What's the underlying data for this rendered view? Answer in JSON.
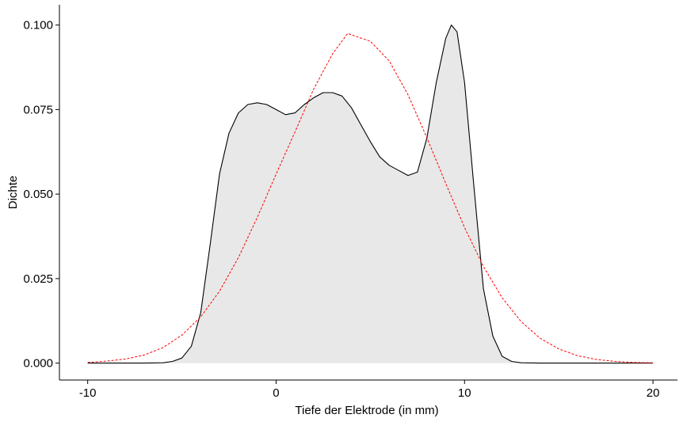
{
  "chart_data": {
    "type": "area",
    "title": "",
    "xlabel": "Tiefe der Elektrode (in mm)",
    "ylabel": "Dichte",
    "xlim": [
      -11.5,
      21.3
    ],
    "ylim": [
      -0.005,
      0.106
    ],
    "x_ticks": [
      -10,
      0,
      10,
      20
    ],
    "x_tick_labels": [
      "-10",
      "0",
      "10",
      "20"
    ],
    "y_ticks": [
      0.0,
      0.025,
      0.05,
      0.075,
      0.1
    ],
    "y_tick_labels": [
      "0.000",
      "0.025",
      "0.050",
      "0.075",
      "0.100"
    ],
    "grid": false,
    "legend": "none",
    "series": [
      {
        "style": "solid-fill",
        "line_color": "#000000",
        "fill_color": "#e8e8e8",
        "x": [
          -10,
          -7,
          -6,
          -5.5,
          -5,
          -4.5,
          -4,
          -3.5,
          -3,
          -2.5,
          -2,
          -1.5,
          -1,
          -0.5,
          0,
          0.5,
          1,
          1.5,
          2,
          2.5,
          3,
          3.5,
          4,
          4.5,
          5,
          5.5,
          6,
          6.5,
          7,
          7.5,
          8,
          8.5,
          9,
          9.3,
          9.6,
          10,
          10.5,
          11,
          11.5,
          12,
          12.5,
          13,
          14,
          16,
          20
        ],
        "y": [
          0.0,
          0.0,
          0.0001,
          0.0005,
          0.0015,
          0.005,
          0.015,
          0.035,
          0.056,
          0.068,
          0.074,
          0.0765,
          0.077,
          0.0765,
          0.075,
          0.0735,
          0.074,
          0.0765,
          0.0785,
          0.08,
          0.08,
          0.079,
          0.0755,
          0.0705,
          0.0655,
          0.061,
          0.0585,
          0.057,
          0.0555,
          0.0565,
          0.0665,
          0.083,
          0.096,
          0.1,
          0.098,
          0.083,
          0.052,
          0.022,
          0.008,
          0.002,
          0.0005,
          0.0001,
          0.0,
          0.0,
          0.0
        ]
      },
      {
        "style": "dashed",
        "line_color": "#ff0000",
        "x": [
          -10,
          -9,
          -8,
          -7,
          -6,
          -5,
          -4,
          -3,
          -2,
          -1,
          0,
          1,
          2,
          3,
          3.8,
          5,
          6,
          7,
          8,
          9,
          10,
          11,
          12,
          13,
          14,
          15,
          16,
          17,
          18,
          19,
          20
        ],
        "y": [
          0.0002,
          0.0006,
          0.0012,
          0.0024,
          0.0046,
          0.0083,
          0.0137,
          0.0213,
          0.0312,
          0.0431,
          0.0559,
          0.0684,
          0.0811,
          0.0915,
          0.0975,
          0.0952,
          0.0894,
          0.0794,
          0.0667,
          0.0532,
          0.0401,
          0.0286,
          0.0193,
          0.0123,
          0.0074,
          0.0042,
          0.0022,
          0.0011,
          0.0005,
          0.0002,
          0.0001
        ]
      }
    ]
  }
}
